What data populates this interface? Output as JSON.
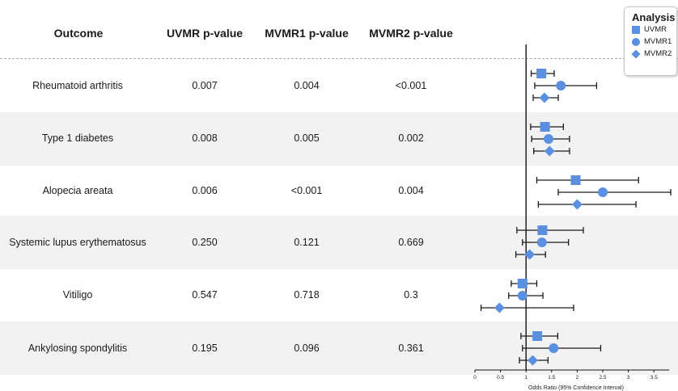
{
  "table": {
    "headers": {
      "outcome": "Outcome",
      "uvmr": "UVMR p-value",
      "mvmr1": "MVMR1 p-value",
      "mvmr2": "MVMR2 p-value"
    },
    "rows": [
      {
        "outcome": "Rheumatoid arthritis",
        "uvmr": "0.007",
        "mvmr1": "0.004",
        "mvmr2": "<0.001"
      },
      {
        "outcome": "Type 1 diabetes",
        "uvmr": "0.008",
        "mvmr1": "0.005",
        "mvmr2": "0.002"
      },
      {
        "outcome": "Alopecia areata",
        "uvmr": "0.006",
        "mvmr1": "<0.001",
        "mvmr2": "0.004"
      },
      {
        "outcome": "Systemic lupus erythematosus",
        "uvmr": "0.250",
        "mvmr1": "0.121",
        "mvmr2": "0.669"
      },
      {
        "outcome": "Vitiligo",
        "uvmr": "0.547",
        "mvmr1": "0.718",
        "mvmr2": "0.3"
      },
      {
        "outcome": "Ankylosing spondylitis",
        "uvmr": "0.195",
        "mvmr1": "0.096",
        "mvmr2": "0.361"
      }
    ]
  },
  "legend": {
    "title": "Analysis",
    "items": [
      {
        "label": "UVMR",
        "shape": "square"
      },
      {
        "label": "MVMR1",
        "shape": "circle"
      },
      {
        "label": "MVMR2",
        "shape": "diamond"
      }
    ]
  },
  "colors": {
    "marker": "#5b8fe0",
    "band": "#f2f2f2",
    "error_bar": "#1a1a1a"
  },
  "chart_data": {
    "type": "scatter",
    "subtype": "forest-plot",
    "xlabel": "Odds Ratio (95% Confidence Interval)",
    "xlim": [
      0,
      3.8
    ],
    "x_ticks": [
      "0",
      "0.5",
      "1",
      "1.5",
      "2",
      "2.5",
      "3",
      "3.5"
    ],
    "reference_line": 1,
    "categories": [
      "Rheumatoid arthritis",
      "Type 1 diabetes",
      "Alopecia areata",
      "Systemic lupus erythematosus",
      "Vitiligo",
      "Ankylosing spondylitis"
    ],
    "series": [
      {
        "name": "UVMR",
        "shape": "square",
        "values": [
          {
            "or": 1.3,
            "lo": 1.1,
            "hi": 1.55
          },
          {
            "or": 1.37,
            "lo": 1.09,
            "hi": 1.73
          },
          {
            "or": 1.97,
            "lo": 1.21,
            "hi": 3.2
          },
          {
            "or": 1.32,
            "lo": 0.82,
            "hi": 2.12
          },
          {
            "or": 0.93,
            "lo": 0.71,
            "hi": 1.21
          },
          {
            "or": 1.22,
            "lo": 0.9,
            "hi": 1.62
          }
        ]
      },
      {
        "name": "MVMR1",
        "shape": "circle",
        "values": [
          {
            "or": 1.68,
            "lo": 1.17,
            "hi": 2.38
          },
          {
            "or": 1.44,
            "lo": 1.11,
            "hi": 1.85
          },
          {
            "or": 2.5,
            "lo": 1.63,
            "hi": 3.83
          },
          {
            "or": 1.31,
            "lo": 0.93,
            "hi": 1.83
          },
          {
            "or": 0.93,
            "lo": 0.66,
            "hi": 1.33
          },
          {
            "or": 1.54,
            "lo": 0.93,
            "hi": 2.46
          }
        ]
      },
      {
        "name": "MVMR2",
        "shape": "diamond",
        "values": [
          {
            "or": 1.36,
            "lo": 1.14,
            "hi": 1.63
          },
          {
            "or": 1.46,
            "lo": 1.15,
            "hi": 1.85
          },
          {
            "or": 2.0,
            "lo": 1.24,
            "hi": 3.15
          },
          {
            "or": 1.07,
            "lo": 0.8,
            "hi": 1.38
          },
          {
            "or": 0.48,
            "lo": 0.12,
            "hi": 1.93
          },
          {
            "or": 1.13,
            "lo": 0.87,
            "hi": 1.43
          }
        ]
      }
    ]
  }
}
